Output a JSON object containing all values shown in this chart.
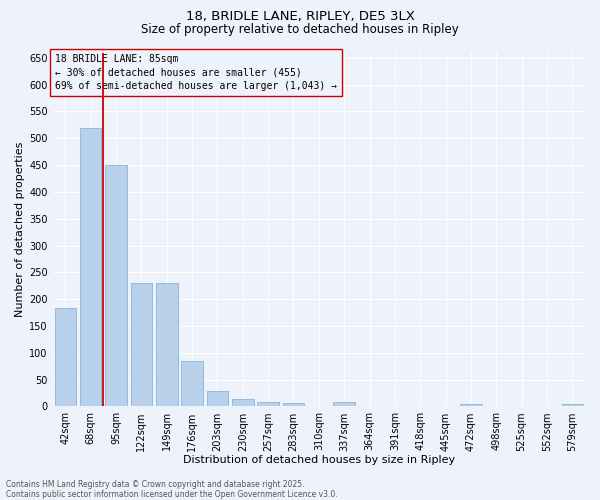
{
  "title_line1": "18, BRIDLE LANE, RIPLEY, DE5 3LX",
  "title_line2": "Size of property relative to detached houses in Ripley",
  "xlabel": "Distribution of detached houses by size in Ripley",
  "ylabel": "Number of detached properties",
  "categories": [
    "42sqm",
    "68sqm",
    "95sqm",
    "122sqm",
    "149sqm",
    "176sqm",
    "203sqm",
    "230sqm",
    "257sqm",
    "283sqm",
    "310sqm",
    "337sqm",
    "364sqm",
    "391sqm",
    "418sqm",
    "445sqm",
    "472sqm",
    "498sqm",
    "525sqm",
    "552sqm",
    "579sqm"
  ],
  "values": [
    183,
    519,
    450,
    230,
    230,
    85,
    28,
    14,
    9,
    7,
    0,
    8,
    0,
    0,
    0,
    0,
    5,
    0,
    0,
    0,
    5
  ],
  "bar_color": "#b8d0ea",
  "bar_edge_color": "#7aadd4",
  "bar_edge_width": 0.5,
  "vline_color": "#cc0000",
  "vline_x": 1.5,
  "annotation_text": "18 BRIDLE LANE: 85sqm\n← 30% of detached houses are smaller (455)\n69% of semi-detached houses are larger (1,043) →",
  "ylim_max": 660,
  "yticks": [
    0,
    50,
    100,
    150,
    200,
    250,
    300,
    350,
    400,
    450,
    500,
    550,
    600,
    650
  ],
  "background_color": "#eef2fb",
  "grid_color": "#ffffff",
  "footer_line1": "Contains HM Land Registry data © Crown copyright and database right 2025.",
  "footer_line2": "Contains public sector information licensed under the Open Government Licence v3.0.",
  "title_fontsize": 9.5,
  "subtitle_fontsize": 8.5,
  "xlabel_fontsize": 8,
  "ylabel_fontsize": 8,
  "tick_fontsize": 7,
  "annotation_fontsize": 7,
  "footer_fontsize": 5.5
}
